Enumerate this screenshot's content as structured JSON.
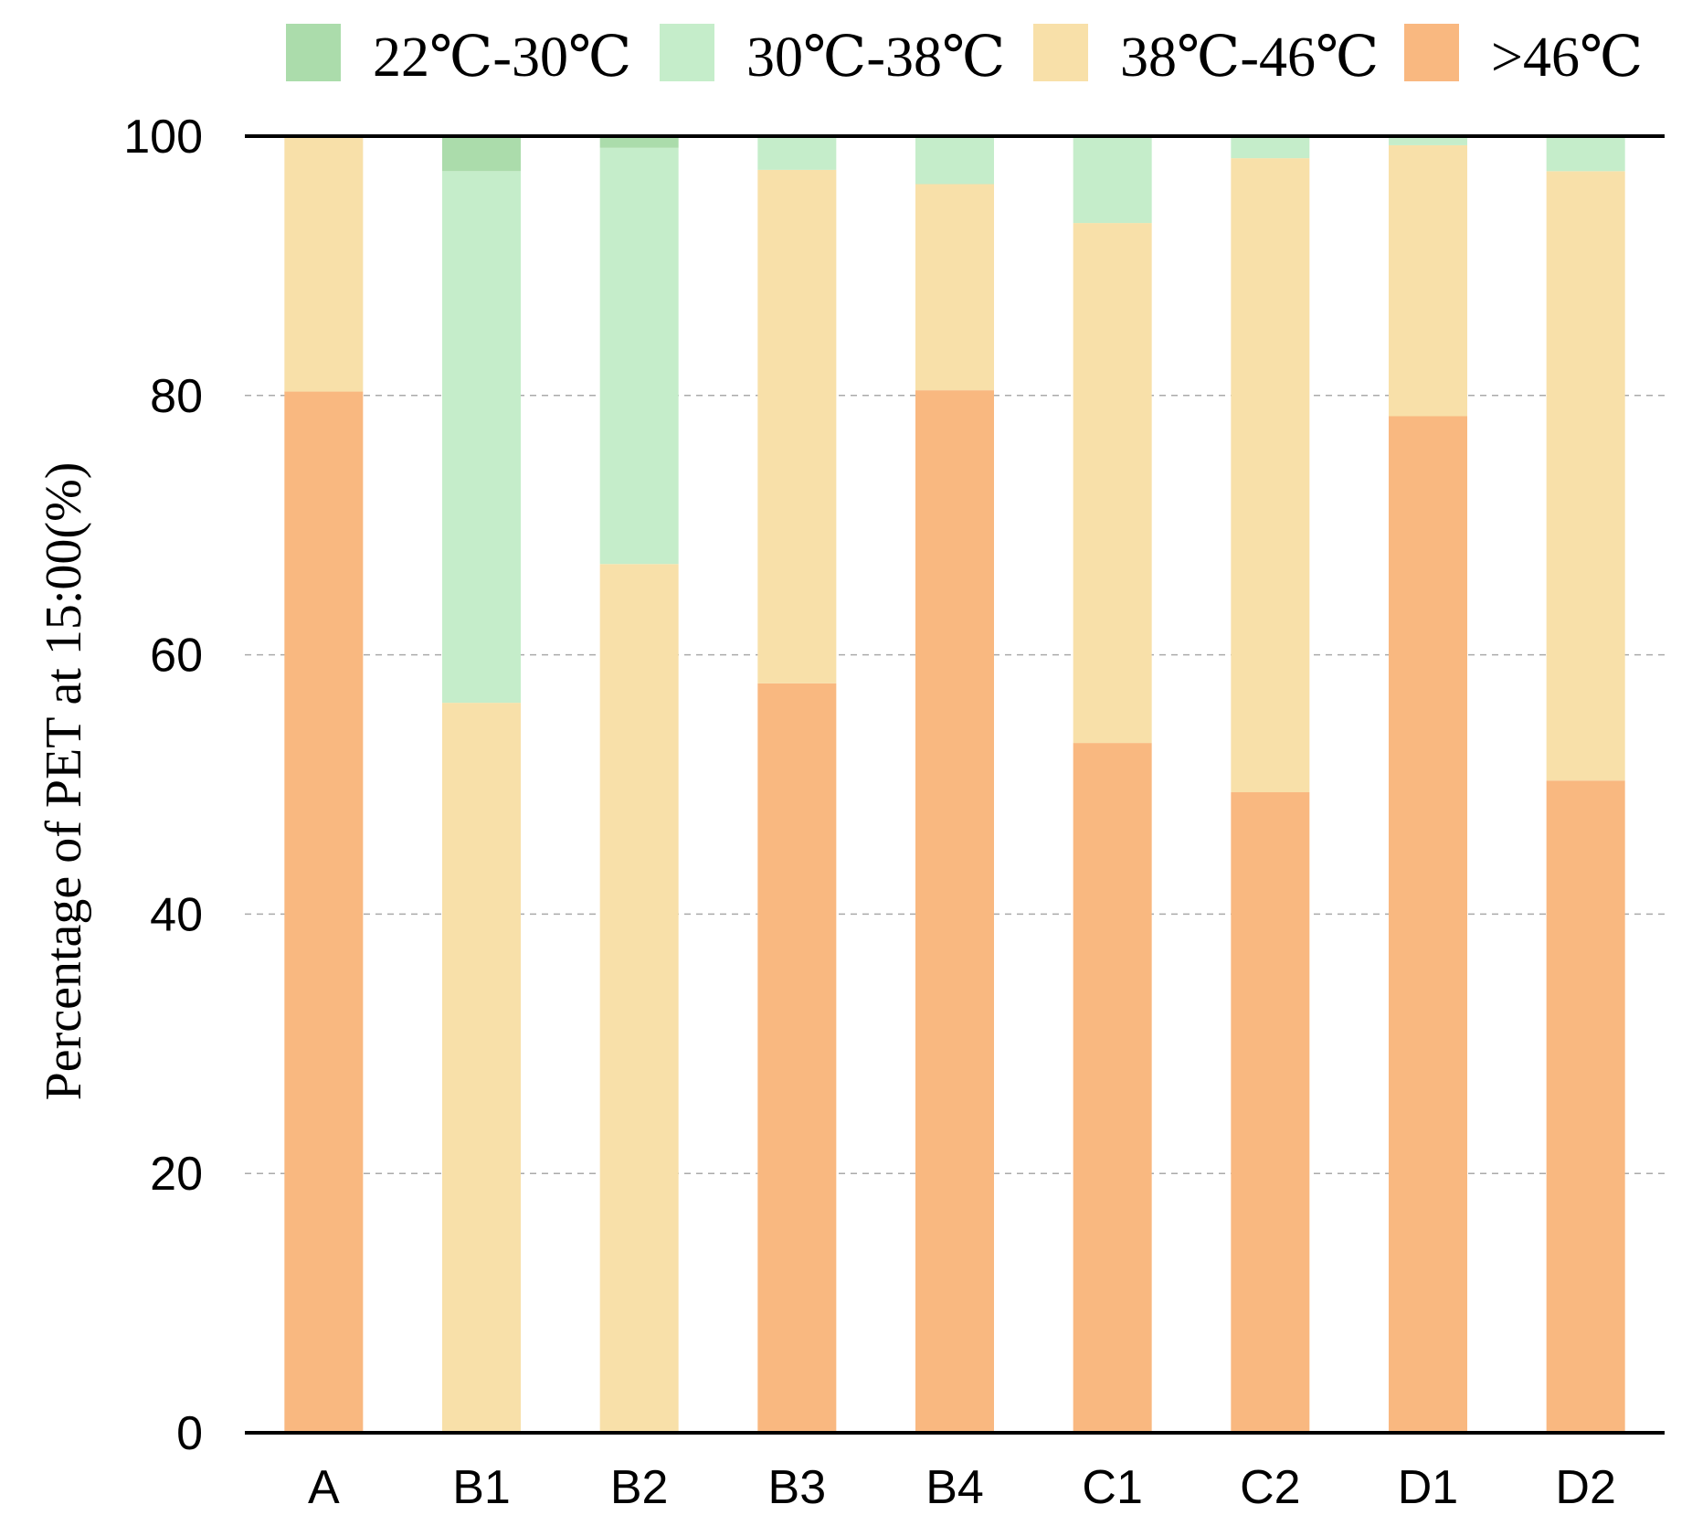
{
  "chart_data": {
    "type": "bar",
    "stacked": true,
    "title": "",
    "xlabel": "",
    "ylabel": "Percentage of PET at 15:00(%)",
    "ylim": [
      0,
      100
    ],
    "yticks": [
      0,
      20,
      40,
      60,
      80,
      100
    ],
    "grid": "horizontal dashed",
    "legend_position": "top",
    "categories": [
      "A",
      "B1",
      "B2",
      "B3",
      "B4",
      "C1",
      "C2",
      "D1",
      "D2"
    ],
    "series": [
      {
        "name": ">46℃",
        "color": "#f9b880",
        "values": [
          80.3,
          0,
          0,
          57.8,
          80.4,
          53.2,
          49.4,
          78.4,
          50.3
        ]
      },
      {
        "name": "38℃-46℃",
        "color": "#f8e0a9",
        "values": [
          19.7,
          56.3,
          67.0,
          39.6,
          15.9,
          40.1,
          48.9,
          20.9,
          47.0
        ]
      },
      {
        "name": "30℃-38℃",
        "color": "#c5edca",
        "values": [
          0,
          41.0,
          32.1,
          2.6,
          3.7,
          6.7,
          1.7,
          0.7,
          2.7
        ]
      },
      {
        "name": "22℃-30℃",
        "color": "#abdcab",
        "values": [
          0,
          2.7,
          0.9,
          0,
          0,
          0,
          0,
          0,
          0
        ]
      }
    ]
  }
}
